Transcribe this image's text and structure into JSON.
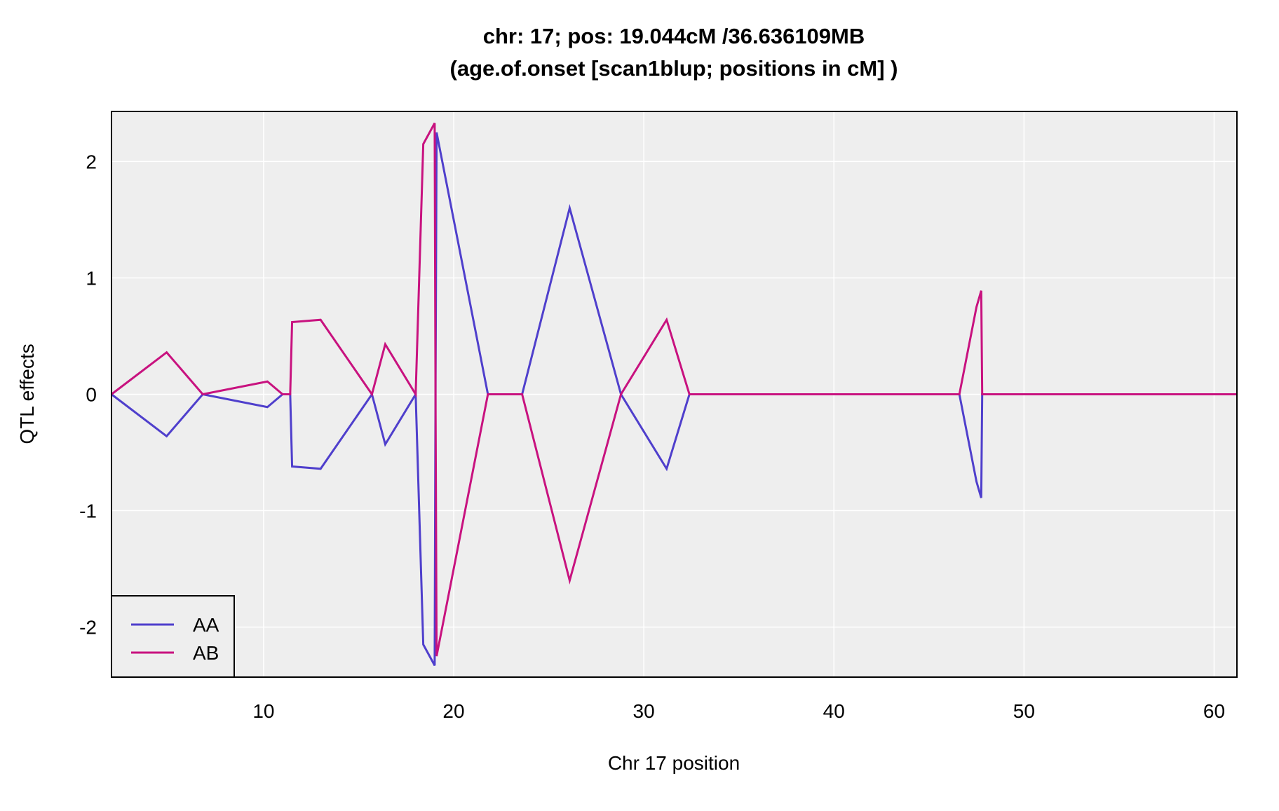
{
  "chart_data": {
    "type": "line",
    "title": "chr: 17; pos: 19.044cM /36.636109MB",
    "subtitle": "(age.of.onset [scan1blup; positions in cM] )",
    "xlabel": "Chr 17 position",
    "ylabel": "QTL effects",
    "xlim": [
      2,
      61.2
    ],
    "ylim": [
      -2.43,
      2.43
    ],
    "xticks": [
      10,
      20,
      30,
      40,
      50,
      60
    ],
    "yticks": [
      -2,
      -1,
      0,
      1,
      2
    ],
    "grid": true,
    "legend_position": "bottom-left",
    "colors": {
      "AA": "#4f3fcc",
      "AB": "#c8127f",
      "panel": "#eeeeee",
      "grid": "#ffffff"
    },
    "x": [
      2.0,
      4.9,
      6.8,
      10.2,
      11.0,
      11.4,
      11.5,
      13.0,
      15.7,
      16.4,
      18.0,
      18.4,
      19.0,
      19.044,
      19.1,
      21.8,
      23.6,
      26.1,
      28.8,
      31.2,
      32.4,
      46.6,
      47.5,
      47.75,
      47.8,
      61.2
    ],
    "series": [
      {
        "name": "AA",
        "values": [
          0,
          -0.36,
          0,
          -0.11,
          0,
          0,
          -0.62,
          -0.64,
          0,
          -0.43,
          0,
          -2.15,
          -2.33,
          0,
          2.25,
          0,
          0,
          1.6,
          0,
          -0.64,
          0,
          0,
          -0.75,
          -0.89,
          0,
          0
        ]
      },
      {
        "name": "AB",
        "values": [
          0,
          0.36,
          0,
          0.11,
          0,
          0,
          0.62,
          0.64,
          0,
          0.43,
          0,
          2.15,
          2.33,
          0,
          -2.25,
          0,
          0,
          -1.6,
          0,
          0.64,
          0,
          0,
          0.75,
          0.89,
          0,
          0
        ]
      }
    ]
  }
}
